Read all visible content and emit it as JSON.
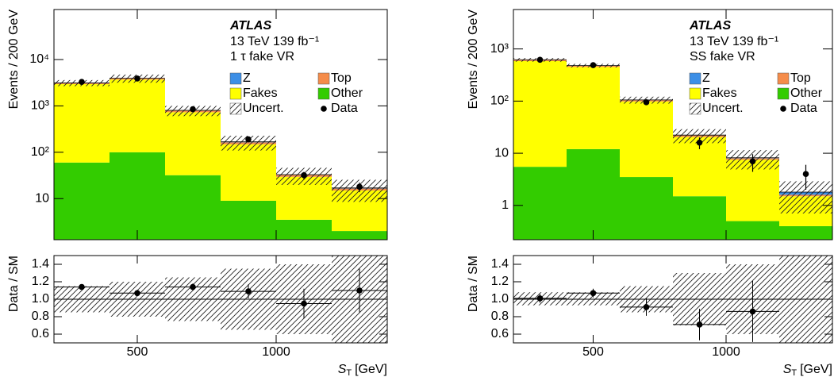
{
  "chart_data": [
    {
      "type": "histogram",
      "bins": [
        200,
        400,
        600,
        800,
        1000,
        1200,
        1400
      ],
      "xlim": [
        200,
        1400
      ],
      "xticks": [
        500,
        1000
      ],
      "x_label": [
        "S",
        "T",
        "[GeV]"
      ],
      "y_label": "Events / 200 GeV",
      "log_scale": true,
      "ylim": [
        1.3,
        120000
      ],
      "yticks": [
        10,
        {
          "value": 100,
          "label": "10²"
        },
        {
          "value": 1000,
          "label": "10³"
        },
        {
          "value": 10000,
          "label": "10⁴"
        }
      ],
      "annotation": {
        "experiment": "ATLAS",
        "energy": "13 TeV 139 fb⁻¹",
        "region": "1 τ fake VR"
      },
      "series": [
        {
          "name": "Z",
          "color": "#3d8fe6",
          "values": [
            30,
            50,
            10,
            4,
            0.5,
            0.5
          ]
        },
        {
          "name": "Top",
          "color": "#f58c4a",
          "values": [
            150,
            200,
            60,
            15,
            3,
            1.5
          ]
        },
        {
          "name": "Fakes",
          "color": "#ffff00",
          "values": [
            2900,
            3600,
            700,
            140,
            26,
            13
          ]
        },
        {
          "name": "Other",
          "color": "#33cc00",
          "values": [
            60,
            100,
            32,
            9,
            3.5,
            2
          ]
        }
      ],
      "uncertainty": {
        "name": "Uncert.",
        "values": [
          471,
          790,
          200,
          59,
          13.2,
          8.5
        ]
      },
      "data": {
        "name": "Data",
        "values": [
          3300,
          3900,
          850,
          190,
          32,
          18
        ],
        "errors": [
          57,
          62,
          29,
          14,
          5.7,
          4.2
        ]
      },
      "ratio": {
        "y_label": "Data / SM",
        "ylim": [
          0.5,
          1.5
        ],
        "yticks": [
          0.6,
          0.8,
          {
            "value": 1,
            "label": "1.0"
          },
          1.2,
          1.4
        ],
        "values": [
          1.14,
          1.07,
          1.14,
          1.09,
          0.95,
          1.1
        ],
        "errors": [
          0.02,
          0.02,
          0.04,
          0.08,
          0.17,
          0.25
        ],
        "uncertainty": {
          "low": [
            0.85,
            0.8,
            0.75,
            0.65,
            0.6,
            0.5
          ],
          "high": [
            1.15,
            1.2,
            1.25,
            1.35,
            1.4,
            1.5
          ]
        }
      }
    },
    {
      "type": "histogram",
      "bins": [
        200,
        400,
        600,
        800,
        1000,
        1200,
        1400
      ],
      "xlim": [
        200,
        1400
      ],
      "xticks": [
        500,
        1000
      ],
      "x_label": [
        "S",
        "T",
        "[GeV]"
      ],
      "y_label": "Events / 200 GeV",
      "log_scale": true,
      "ylim": [
        0.22,
        5700
      ],
      "yticks": [
        1,
        10,
        {
          "value": 100,
          "label": "10²"
        },
        {
          "value": 1000,
          "label": "10³"
        }
      ],
      "annotation": {
        "experiment": "ATLAS",
        "energy": "13 TeV 139 fb⁻¹",
        "region": "SS fake VR"
      },
      "series": [
        {
          "name": "Z",
          "color": "#3d8fe6",
          "values": [
            5,
            3,
            1,
            0.3,
            0.2,
            0.2
          ]
        },
        {
          "name": "Top",
          "color": "#f58c4a",
          "values": [
            30,
            25,
            6,
            1.5,
            0.5,
            0.1
          ]
        },
        {
          "name": "Fakes",
          "color": "#ffff00",
          "values": [
            580,
            440,
            95,
            19,
            7,
            1.1
          ]
        },
        {
          "name": "Other",
          "color": "#33cc00",
          "values": [
            5.5,
            12,
            3.5,
            1.5,
            0.5,
            0.4
          ]
        }
      ],
      "uncertainty": {
        "name": "Uncert.",
        "values": [
          50,
          38,
          16,
          6.7,
          3.3,
          1.1
        ]
      },
      "data": {
        "name": "Data",
        "values": [
          620,
          490,
          95,
          16,
          7,
          4
        ],
        "errors": [
          25,
          22,
          10,
          4,
          2.6,
          2
        ]
      },
      "ratio": {
        "y_label": "Data / SM",
        "ylim": [
          0.5,
          1.5
        ],
        "yticks": [
          0.6,
          0.8,
          {
            "value": 1,
            "label": "1.0"
          },
          1.2,
          1.4
        ],
        "values": [
          1.01,
          1.07,
          0.91,
          0.71,
          0.86,
          null
        ],
        "errors": [
          0.05,
          0.05,
          0.1,
          0.18,
          0.35,
          null
        ],
        "uncertainty": {
          "low": [
            0.93,
            0.93,
            0.85,
            0.7,
            0.6,
            0.4
          ],
          "high": [
            1.08,
            1.08,
            1.15,
            1.3,
            1.4,
            1.6
          ]
        }
      }
    }
  ]
}
